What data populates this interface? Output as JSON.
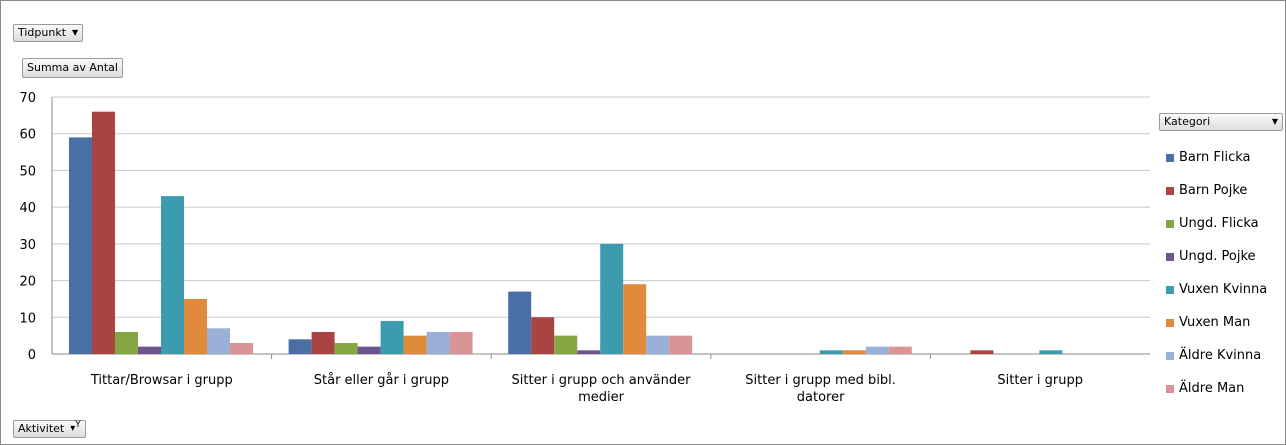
{
  "pivot": {
    "report_filter_label": "Tidpunkt",
    "values_label": "Summa av Antal",
    "axis_field_label": "Aktivitet",
    "legend_field_label": "Kategori"
  },
  "icons": {
    "dropdown": "chevron-down-icon",
    "filter": "filter-icon"
  },
  "chart_data": {
    "type": "bar",
    "categories": [
      "Tittar/Browsar i grupp",
      "Står eller går i grupp",
      "Sitter i grupp och använder medier",
      "Sitter i grupp med bibl. datorer",
      "Sitter i grupp"
    ],
    "series": [
      {
        "name": "Barn Flicka",
        "color": "#4a6fa5",
        "values": [
          59,
          4,
          17,
          0,
          0
        ]
      },
      {
        "name": "Barn Pojke",
        "color": "#a94442",
        "values": [
          66,
          6,
          10,
          0,
          1
        ]
      },
      {
        "name": "Ungd. Flicka",
        "color": "#86a543",
        "values": [
          6,
          3,
          5,
          0,
          0
        ]
      },
      {
        "name": "Ungd. Pojke",
        "color": "#6c558c",
        "values": [
          2,
          2,
          1,
          0,
          0
        ]
      },
      {
        "name": "Vuxen Kvinna",
        "color": "#3d9bb0",
        "values": [
          43,
          9,
          30,
          1,
          1
        ]
      },
      {
        "name": "Vuxen Man",
        "color": "#e08a3c",
        "values": [
          15,
          5,
          19,
          1,
          0
        ]
      },
      {
        "name": "Äldre Kvinna",
        "color": "#9bb0d6",
        "values": [
          7,
          6,
          5,
          2,
          0
        ]
      },
      {
        "name": "Äldre Man",
        "color": "#d99595",
        "values": [
          3,
          6,
          5,
          2,
          0
        ]
      }
    ],
    "ylim": [
      0,
      70
    ],
    "yticks": [
      0,
      10,
      20,
      30,
      40,
      50,
      60,
      70
    ],
    "grid": true,
    "legend_position": "right"
  }
}
